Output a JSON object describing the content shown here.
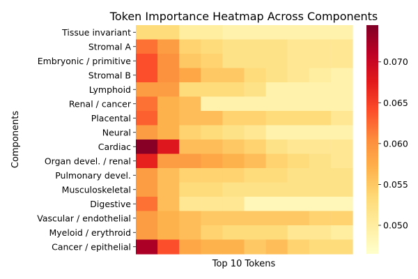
{
  "chart_data": {
    "type": "heatmap",
    "title": "Token Importance Heatmap Across Components",
    "xlabel": "Top 10 Tokens",
    "ylabel": "Components",
    "rows": [
      "Tissue invariant",
      "Stromal A",
      "Embryonic / primitive",
      "Stromal B",
      "Lymphoid",
      "Renal / cancer",
      "Placental",
      "Neural",
      "Cardiac",
      "Organ devel. / renal",
      "Pulmonary devel.",
      "Musculoskeletal",
      "Digestive",
      "Vascular / endothelial",
      "Myeloid / erythroid",
      "Cancer / epithelial"
    ],
    "columns": 10,
    "values": [
      [
        0.053,
        0.053,
        0.05,
        0.05,
        0.049,
        0.049,
        0.049,
        0.049,
        0.049,
        0.049
      ],
      [
        0.062,
        0.059,
        0.054,
        0.053,
        0.052,
        0.052,
        0.052,
        0.051,
        0.051,
        0.051
      ],
      [
        0.064,
        0.06,
        0.055,
        0.054,
        0.052,
        0.052,
        0.052,
        0.051,
        0.051,
        0.051
      ],
      [
        0.064,
        0.06,
        0.058,
        0.055,
        0.055,
        0.053,
        0.052,
        0.051,
        0.05,
        0.049
      ],
      [
        0.059,
        0.059,
        0.053,
        0.053,
        0.053,
        0.052,
        0.049,
        0.049,
        0.049,
        0.049
      ],
      [
        0.062,
        0.057,
        0.056,
        0.049,
        0.049,
        0.049,
        0.049,
        0.049,
        0.049,
        0.049
      ],
      [
        0.063,
        0.057,
        0.056,
        0.056,
        0.054,
        0.054,
        0.053,
        0.053,
        0.053,
        0.051
      ],
      [
        0.059,
        0.057,
        0.054,
        0.053,
        0.052,
        0.051,
        0.049,
        0.049,
        0.049,
        0.049
      ],
      [
        0.074,
        0.068,
        0.056,
        0.056,
        0.055,
        0.054,
        0.052,
        0.051,
        0.051,
        0.051
      ],
      [
        0.067,
        0.059,
        0.059,
        0.058,
        0.057,
        0.056,
        0.054,
        0.053,
        0.052,
        0.051
      ],
      [
        0.059,
        0.056,
        0.054,
        0.054,
        0.054,
        0.053,
        0.053,
        0.052,
        0.052,
        0.052
      ],
      [
        0.059,
        0.056,
        0.053,
        0.053,
        0.052,
        0.052,
        0.052,
        0.052,
        0.052,
        0.052
      ],
      [
        0.062,
        0.056,
        0.051,
        0.051,
        0.051,
        0.048,
        0.048,
        0.048,
        0.048,
        0.048
      ],
      [
        0.059,
        0.057,
        0.056,
        0.055,
        0.055,
        0.055,
        0.055,
        0.055,
        0.054,
        0.054
      ],
      [
        0.059,
        0.057,
        0.056,
        0.054,
        0.053,
        0.053,
        0.053,
        0.051,
        0.051,
        0.05
      ],
      [
        0.072,
        0.064,
        0.058,
        0.057,
        0.057,
        0.055,
        0.056,
        0.054,
        0.053,
        0.053
      ]
    ],
    "colorbar": {
      "min": 0.0465,
      "max": 0.0745,
      "ticks": [
        0.05,
        0.055,
        0.06,
        0.065,
        0.07
      ],
      "tick_labels": [
        "0.050",
        "0.055",
        "0.060",
        "0.065",
        "0.070"
      ],
      "colormap": "YlOrRd"
    }
  }
}
